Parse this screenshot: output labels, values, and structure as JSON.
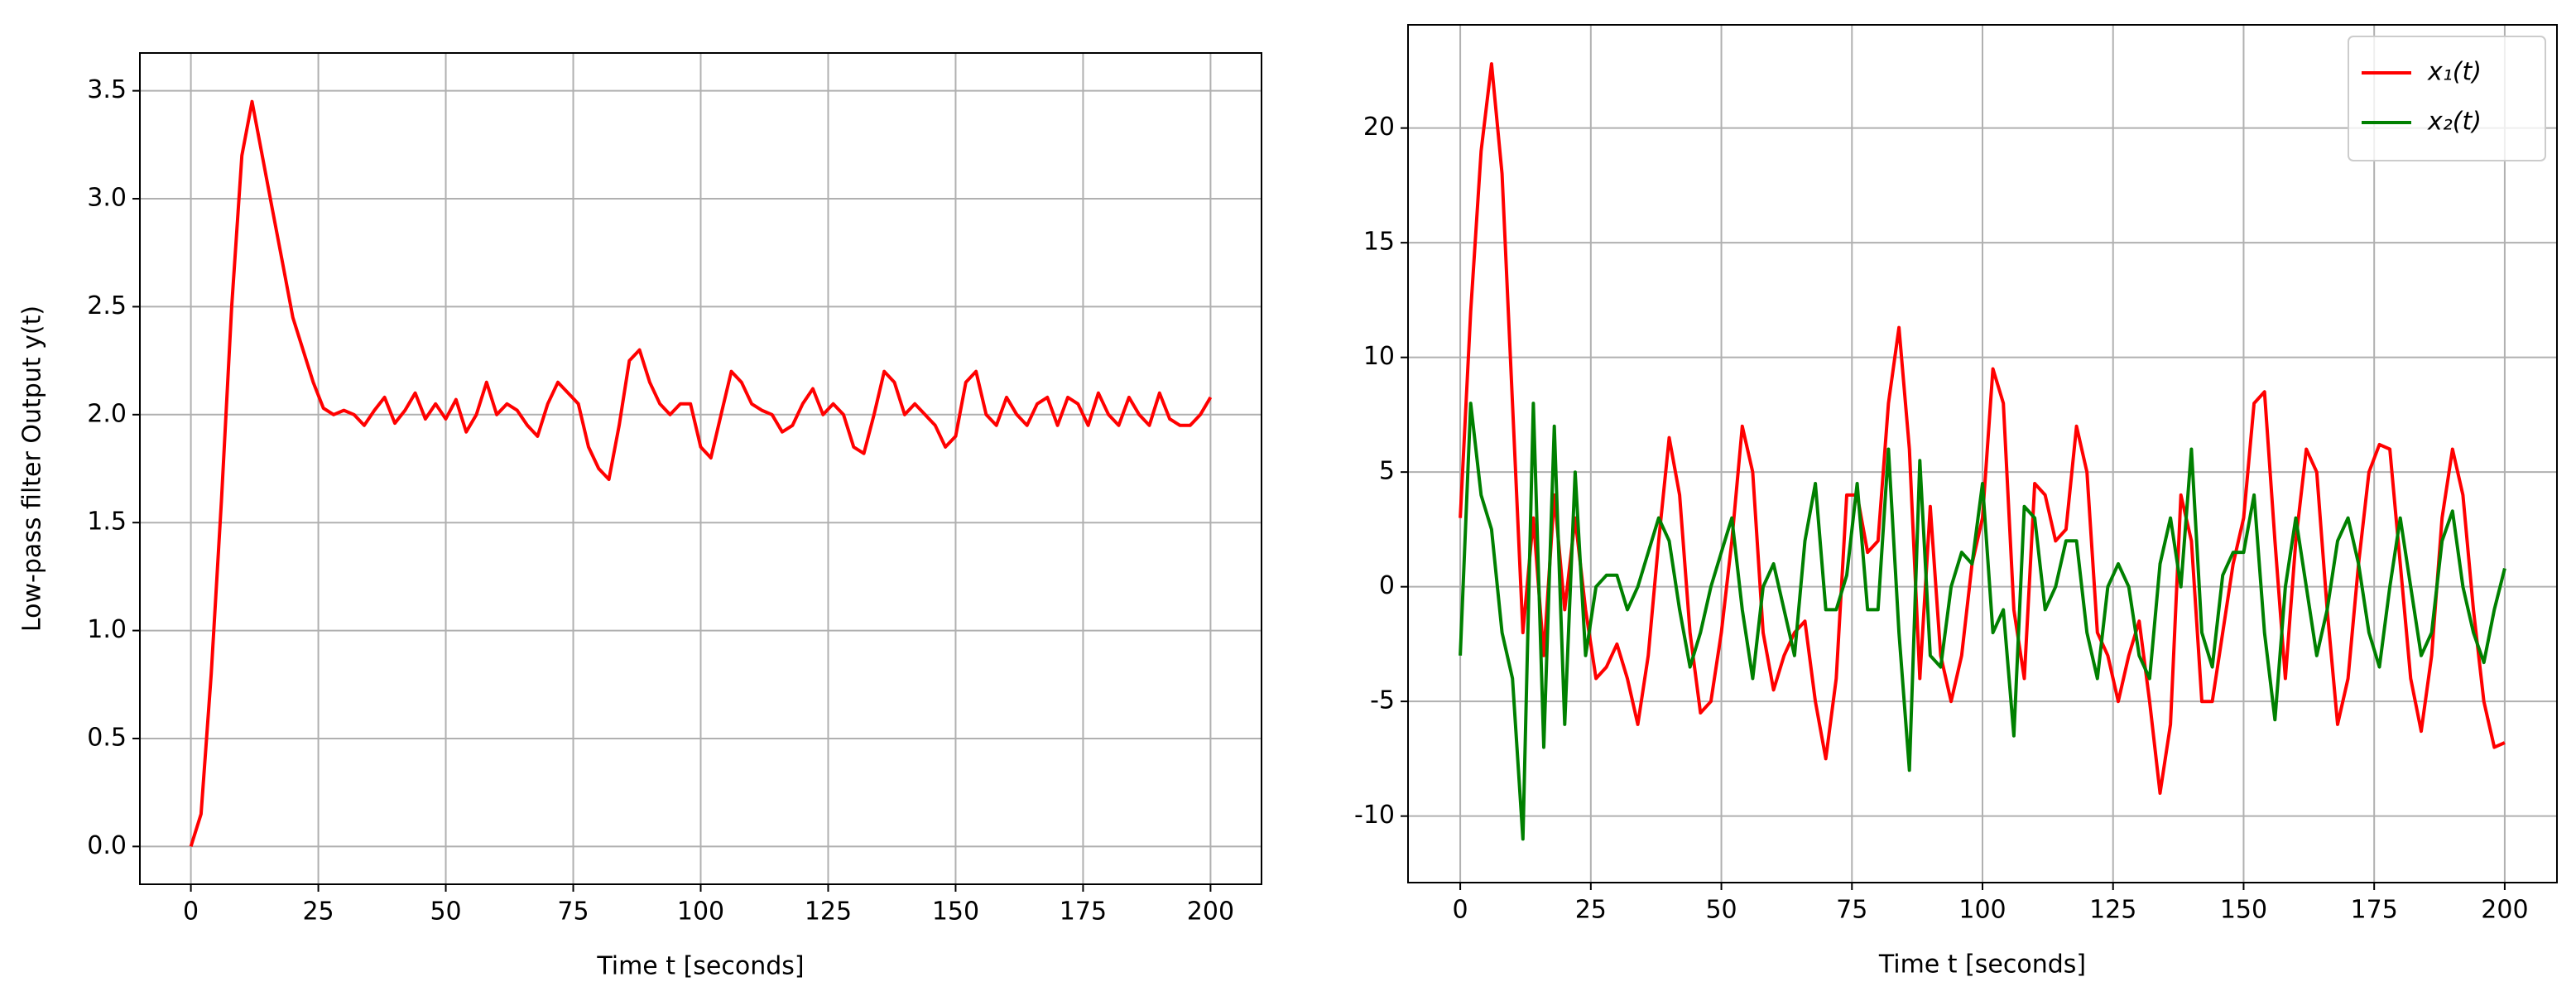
{
  "chart_data": [
    {
      "type": "line",
      "xlabel": "Time t [seconds]",
      "ylabel": "Low-pass filter Output y(t)",
      "x": [
        0,
        2,
        4,
        6,
        8,
        10,
        12,
        14,
        16,
        18,
        20,
        22,
        24,
        26,
        28,
        30,
        32,
        34,
        36,
        38,
        40,
        42,
        44,
        46,
        48,
        50,
        52,
        54,
        56,
        58,
        60,
        62,
        64,
        66,
        68,
        70,
        72,
        74,
        76,
        78,
        80,
        82,
        84,
        86,
        88,
        90,
        92,
        94,
        96,
        98,
        100,
        102,
        104,
        106,
        108,
        110,
        112,
        114,
        116,
        118,
        120,
        122,
        124,
        126,
        128,
        130,
        132,
        134,
        136,
        138,
        140,
        142,
        144,
        146,
        148,
        150,
        152,
        154,
        156,
        158,
        160,
        162,
        164,
        166,
        168,
        170,
        172,
        174,
        176,
        178,
        180,
        182,
        184,
        186,
        188,
        190,
        192,
        194,
        196,
        198,
        200
      ],
      "series": [
        {
          "name": "y(t)",
          "color": "#ff0000",
          "values": [
            0,
            0.15,
            0.8,
            1.6,
            2.5,
            3.2,
            3.45,
            3.2,
            2.95,
            2.7,
            2.45,
            2.3,
            2.15,
            2.03,
            2.0,
            2.02,
            2.0,
            1.95,
            2.02,
            2.08,
            1.96,
            2.02,
            2.1,
            1.98,
            2.05,
            1.98,
            2.07,
            1.92,
            2.0,
            2.15,
            2.0,
            2.05,
            2.02,
            1.95,
            1.9,
            2.05,
            2.15,
            2.1,
            2.05,
            1.85,
            1.75,
            1.7,
            1.95,
            2.25,
            2.3,
            2.15,
            2.05,
            2.0,
            2.05,
            2.05,
            1.85,
            1.8,
            2.0,
            2.2,
            2.15,
            2.05,
            2.02,
            2.0,
            1.92,
            1.95,
            2.05,
            2.12,
            2.0,
            2.05,
            2.0,
            1.85,
            1.82,
            2.0,
            2.2,
            2.15,
            2.0,
            2.05,
            2.0,
            1.95,
            1.85,
            1.9,
            2.15,
            2.2,
            2.0,
            1.95,
            2.08,
            2.0,
            1.95,
            2.05,
            2.08,
            1.95,
            2.08,
            2.05,
            1.95,
            2.1,
            2.0,
            1.95,
            2.08,
            2.0,
            1.95,
            2.1,
            1.98,
            1.95,
            1.95,
            2.0,
            2.08
          ]
        }
      ],
      "xlim": [
        -10,
        210
      ],
      "ylim": [
        -0.175,
        3.675
      ],
      "xticks": [
        0,
        25,
        50,
        75,
        100,
        125,
        150,
        175,
        200
      ],
      "yticks": [
        {
          "value": 0,
          "label": "0.0"
        },
        0.5,
        {
          "value": 1,
          "label": "1.0"
        },
        1.5,
        {
          "value": 2,
          "label": "2.0"
        },
        2.5,
        {
          "value": 3,
          "label": "3.0"
        },
        3.5
      ],
      "grid": true,
      "legend": false
    },
    {
      "type": "line",
      "xlabel": "Time t [seconds]",
      "x": [
        0,
        2,
        4,
        6,
        8,
        10,
        12,
        14,
        16,
        18,
        20,
        22,
        24,
        26,
        28,
        30,
        32,
        34,
        36,
        38,
        40,
        42,
        44,
        46,
        48,
        50,
        52,
        54,
        56,
        58,
        60,
        62,
        64,
        66,
        68,
        70,
        72,
        74,
        76,
        78,
        80,
        82,
        84,
        86,
        88,
        90,
        92,
        94,
        96,
        98,
        100,
        102,
        104,
        106,
        108,
        110,
        112,
        114,
        116,
        118,
        120,
        122,
        124,
        126,
        128,
        130,
        132,
        134,
        136,
        138,
        140,
        142,
        144,
        146,
        148,
        150,
        152,
        154,
        156,
        158,
        160,
        162,
        164,
        166,
        168,
        170,
        172,
        174,
        176,
        178,
        180,
        182,
        184,
        186,
        188,
        190,
        192,
        194,
        196,
        198,
        200
      ],
      "series": [
        {
          "name": "x₁(t)",
          "color": "#ff0000",
          "values": [
            3,
            12,
            19,
            22.8,
            18,
            8,
            -2,
            3,
            -3,
            4,
            -1,
            3,
            -1,
            -4,
            -3.5,
            -2.5,
            -4,
            -6,
            -3,
            2,
            6.5,
            4,
            -2,
            -5.5,
            -5,
            -2,
            2,
            7,
            5,
            -2,
            -4.5,
            -3,
            -2,
            -1.5,
            -5,
            -7.5,
            -4,
            4,
            4,
            1.5,
            2,
            8,
            11.3,
            6,
            -4,
            3.5,
            -3,
            -5,
            -3,
            1,
            3,
            9.5,
            8,
            -1,
            -4,
            4.5,
            4,
            2,
            2.5,
            7,
            5,
            -2,
            -3,
            -5,
            -3,
            -1.5,
            -5,
            -9,
            -6,
            4,
            2,
            -5,
            -5,
            -2,
            1,
            3,
            8,
            8.5,
            2,
            -4,
            2,
            6,
            5,
            -1,
            -6,
            -4,
            1,
            5,
            6.2,
            6,
            1,
            -4,
            -6.3,
            -3,
            3,
            6,
            4,
            -1,
            -5,
            -7,
            -6.8
          ]
        },
        {
          "name": "x₂(t)",
          "color": "#008000",
          "values": [
            -3,
            8,
            4,
            2.5,
            -2,
            -4,
            -11,
            8,
            -7,
            7,
            -6,
            5,
            -3,
            0,
            0.5,
            0.5,
            -1,
            0,
            1.5,
            3,
            2,
            -1,
            -3.5,
            -2,
            0,
            1.5,
            3,
            -1,
            -4,
            0,
            1,
            -1,
            -3,
            2,
            4.5,
            -1,
            -1,
            0.5,
            4.5,
            -1,
            -1,
            6,
            -2,
            -8,
            5.5,
            -3,
            -3.5,
            0,
            1.5,
            1,
            4.5,
            -2,
            -1,
            -6.5,
            3.5,
            3,
            -1,
            0,
            2,
            2,
            -2,
            -4,
            0,
            1,
            0,
            -3,
            -4,
            1,
            3,
            0,
            6,
            -2,
            -3.5,
            0.5,
            1.5,
            1.5,
            4,
            -2,
            -5.8,
            0,
            3,
            0,
            -3,
            -1,
            2,
            3,
            1,
            -2,
            -3.5,
            0,
            3,
            0,
            -3,
            -2,
            2,
            3.3,
            0,
            -2,
            -3.3,
            -1,
            0.8
          ]
        }
      ],
      "xlim": [
        -10,
        210
      ],
      "ylim": [
        -12.9,
        24.5
      ],
      "xticks": [
        0,
        25,
        50,
        75,
        100,
        125,
        150,
        175,
        200
      ],
      "yticks": [
        -10,
        -5,
        0,
        5,
        10,
        15,
        20
      ],
      "grid": true,
      "legend": "upper right"
    }
  ]
}
